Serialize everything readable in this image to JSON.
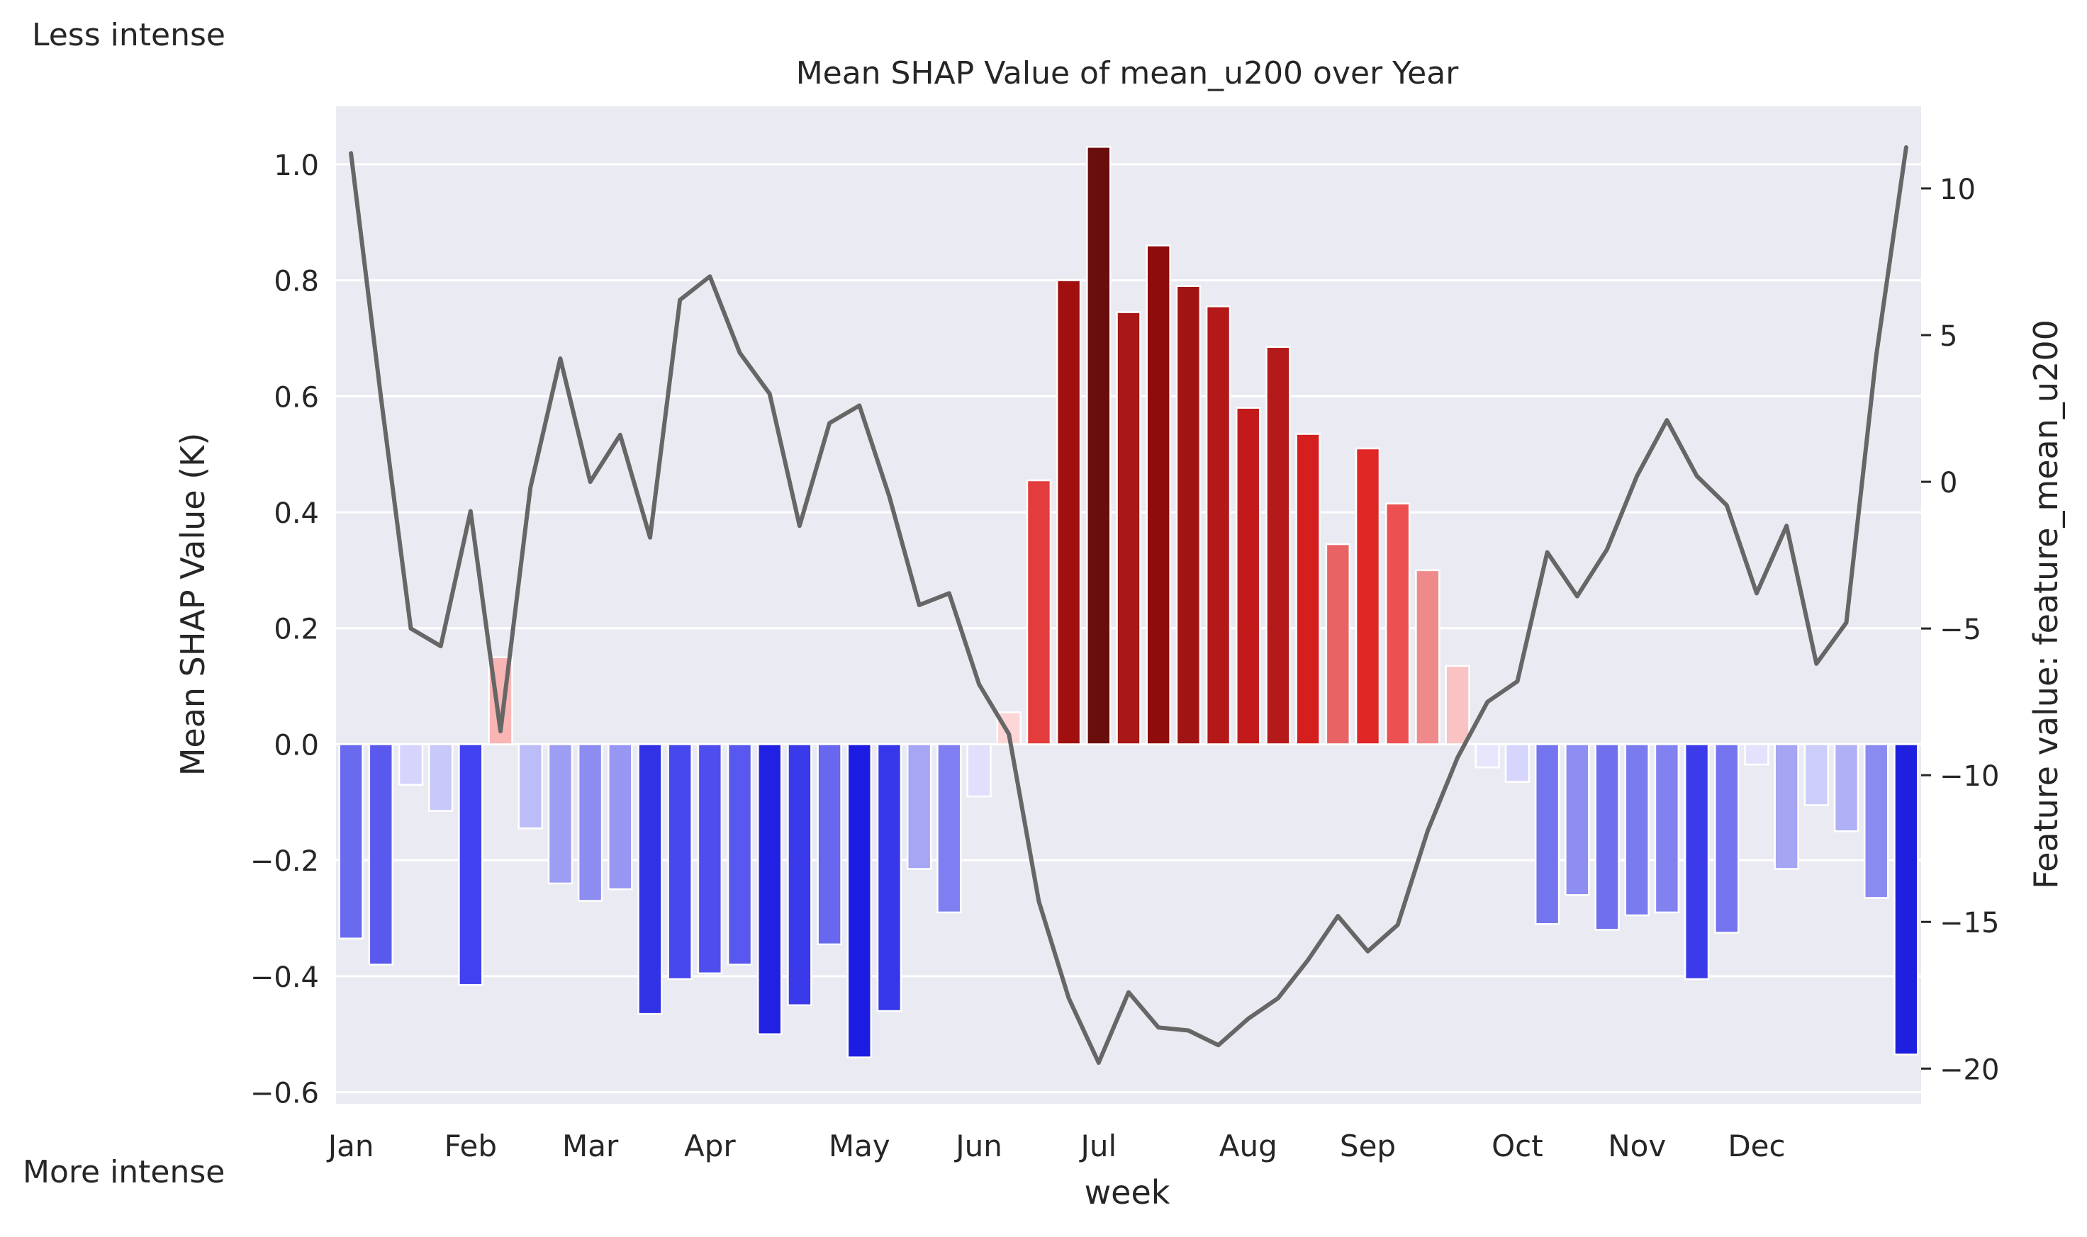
{
  "chart_data": {
    "type": "bar",
    "title": "Mean SHAP Value of mean_u200 over Year",
    "xlabel": "week",
    "ylabel": "Mean SHAP Value (K)",
    "ylabel_right": "Feature value: feature_mean_u200",
    "annotation_top": "Less intense",
    "annotation_bottom": "More intense",
    "grid": true,
    "ylim": [
      -0.62,
      1.1
    ],
    "ylim_right": [
      -21.2,
      12.8
    ],
    "yticks": [
      1.0,
      0.8,
      0.6,
      0.4,
      0.2,
      0.0,
      -0.2,
      -0.4,
      -0.6
    ],
    "ytick_labels": [
      "1.0",
      "0.8",
      "0.6",
      "0.4",
      "0.2",
      "0.0",
      "−0.2",
      "−0.4",
      "−0.6"
    ],
    "yticks_right": [
      10,
      5,
      0,
      -5,
      -10,
      -15,
      -20
    ],
    "ytick_labels_right": [
      "10",
      "5",
      "0",
      "−5",
      "−10",
      "−15",
      "−20"
    ],
    "month_ticks": [
      {
        "label": "Jan",
        "week": 1
      },
      {
        "label": "Feb",
        "week": 5
      },
      {
        "label": "Mar",
        "week": 9
      },
      {
        "label": "Apr",
        "week": 13
      },
      {
        "label": "May",
        "week": 18
      },
      {
        "label": "Jun",
        "week": 22
      },
      {
        "label": "Jul",
        "week": 26
      },
      {
        "label": "Aug",
        "week": 31
      },
      {
        "label": "Sep",
        "week": 35
      },
      {
        "label": "Oct",
        "week": 40
      },
      {
        "label": "Nov",
        "week": 44
      },
      {
        "label": "Dec",
        "week": 48
      }
    ],
    "weeks": [
      1,
      2,
      3,
      4,
      5,
      6,
      7,
      8,
      9,
      10,
      11,
      12,
      13,
      14,
      15,
      16,
      17,
      18,
      19,
      20,
      21,
      22,
      23,
      24,
      25,
      26,
      27,
      28,
      29,
      30,
      31,
      32,
      33,
      34,
      35,
      36,
      37,
      38,
      39,
      40,
      41,
      42,
      43,
      44,
      45,
      46,
      47,
      48,
      49,
      50,
      51,
      52,
      53
    ],
    "shap_values": [
      -0.335,
      -0.38,
      -0.07,
      -0.115,
      -0.415,
      0.15,
      -0.145,
      -0.24,
      -0.27,
      -0.25,
      -0.465,
      -0.405,
      -0.395,
      -0.38,
      -0.5,
      -0.45,
      -0.345,
      -0.54,
      -0.46,
      -0.215,
      -0.29,
      -0.09,
      0.055,
      0.455,
      0.8,
      1.03,
      0.745,
      0.86,
      0.79,
      0.755,
      0.58,
      0.685,
      0.535,
      0.345,
      0.51,
      0.415,
      0.3,
      0.135,
      -0.04,
      -0.065,
      -0.31,
      -0.26,
      -0.32,
      -0.295,
      -0.29,
      -0.405,
      -0.325,
      -0.035,
      -0.215,
      -0.105,
      -0.15,
      -0.265,
      -0.535
    ],
    "bar_colors": [
      "#6a6aef",
      "#5959ee",
      "#d4d4fc",
      "#c8c8fa",
      "#4141f0",
      "#f9b4b4",
      "#bcbcf8",
      "#9d9df3",
      "#8c8cf1",
      "#9797f3",
      "#3131e6",
      "#4747ee",
      "#4e4eef",
      "#5858f0",
      "#2121e3",
      "#3a3aeb",
      "#6767ef",
      "#1c1ce2",
      "#3636ea",
      "#a6a6f5",
      "#7f7ff2",
      "#e0e0fd",
      "#fcd6d6",
      "#e23c3c",
      "#a10f0f",
      "#6a0d0d",
      "#a81818",
      "#8f0c0c",
      "#a11414",
      "#b41818",
      "#c21a1a",
      "#b51a1a",
      "#d51f1f",
      "#e86464",
      "#e12626",
      "#ec5050",
      "#f08a8a",
      "#f9c3c3",
      "#e6e6fd",
      "#d6d6fc",
      "#7474ef",
      "#8d8df2",
      "#7070ef",
      "#7b7bf0",
      "#8181f0",
      "#3b3bea",
      "#7474ef",
      "#e2e2fd",
      "#a5a5f4",
      "#cdcdfa",
      "#b0b0f6",
      "#8a8af1",
      "#1f1fe0"
    ],
    "feature_series": {
      "name": "",
      "color": "#666666",
      "values": [
        11.2,
        2.9,
        -5.0,
        -5.6,
        -1.0,
        -8.5,
        -0.2,
        4.2,
        0.0,
        1.6,
        -1.9,
        6.2,
        7.0,
        4.4,
        3.0,
        -1.5,
        2.0,
        2.6,
        -0.5,
        -4.2,
        -3.8,
        -6.9,
        -8.6,
        -14.3,
        -17.6,
        -19.8,
        -17.4,
        -18.6,
        -18.7,
        -19.2,
        -18.3,
        -17.6,
        -16.3,
        -14.8,
        -16.0,
        -15.1,
        -11.9,
        -9.4,
        -7.5,
        -6.8,
        -2.4,
        -3.9,
        -2.3,
        0.2,
        2.1,
        0.2,
        -0.8,
        -3.8,
        -1.5,
        -6.2,
        -4.8,
        4.3,
        11.4
      ]
    }
  }
}
